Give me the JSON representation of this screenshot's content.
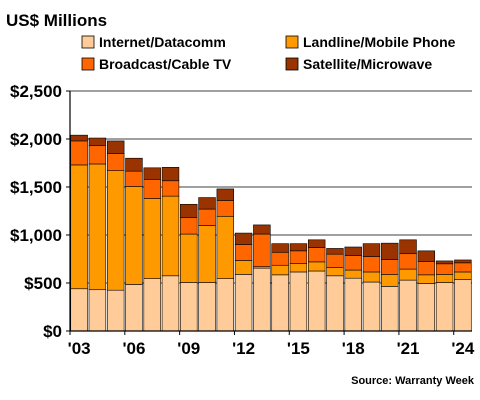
{
  "chart_data": {
    "type": "bar",
    "stacked": true,
    "title": "US$ Millions",
    "source": "Source: Warranty Week",
    "categories": [
      "2003",
      "2004",
      "2005",
      "2006",
      "2007",
      "2008",
      "2009",
      "2010",
      "2011",
      "2012",
      "2013",
      "2014",
      "2015",
      "2016",
      "2017",
      "2018",
      "2019",
      "2020",
      "2021",
      "2022",
      "2023",
      "2024"
    ],
    "x_tick_labels": [
      {
        "index": 0,
        "label": "'03"
      },
      {
        "index": 3,
        "label": "'06"
      },
      {
        "index": 6,
        "label": "'09"
      },
      {
        "index": 9,
        "label": "'12"
      },
      {
        "index": 12,
        "label": "'15"
      },
      {
        "index": 15,
        "label": "'18"
      },
      {
        "index": 18,
        "label": "'21"
      },
      {
        "index": 21,
        "label": "'24"
      }
    ],
    "ylim": [
      0,
      2500
    ],
    "y_ticks": [
      {
        "value": 0,
        "label": "$0"
      },
      {
        "value": 500,
        "label": "$500"
      },
      {
        "value": 1000,
        "label": "$1,000"
      },
      {
        "value": 1500,
        "label": "$1,500"
      },
      {
        "value": 2000,
        "label": "$2,000"
      },
      {
        "value": 2500,
        "label": "$2,500"
      }
    ],
    "grid": "horizontal",
    "legend_position": "top",
    "series": [
      {
        "name": "Internet/Datacomm",
        "color": "#FFCC99",
        "values": [
          440,
          430,
          425,
          485,
          545,
          575,
          505,
          505,
          545,
          590,
          655,
          585,
          615,
          625,
          575,
          550,
          510,
          465,
          530,
          495,
          505,
          535
        ]
      },
      {
        "name": "Landline/Mobile Phone",
        "color": "#FF9900",
        "values": [
          1290,
          1310,
          1245,
          1020,
          835,
          830,
          505,
          595,
          650,
          145,
          15,
          100,
          90,
          95,
          85,
          85,
          105,
          125,
          115,
          90,
          85,
          80
        ]
      },
      {
        "name": "Broadcast/Cable TV",
        "color": "#FF6600",
        "values": [
          250,
          190,
          180,
          160,
          200,
          160,
          170,
          170,
          165,
          165,
          340,
          135,
          130,
          150,
          140,
          150,
          160,
          155,
          160,
          140,
          110,
          95
        ]
      },
      {
        "name": "Satellite/Microwave",
        "color": "#993300",
        "values": [
          60,
          80,
          130,
          135,
          120,
          140,
          140,
          120,
          120,
          120,
          95,
          90,
          75,
          80,
          60,
          90,
          135,
          170,
          145,
          110,
          30,
          30
        ]
      }
    ]
  }
}
